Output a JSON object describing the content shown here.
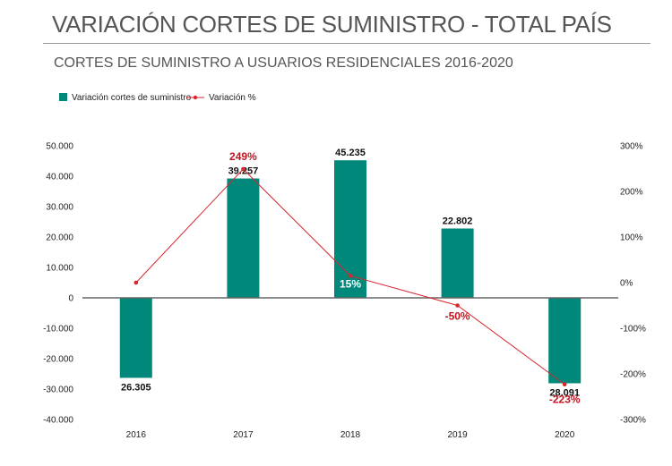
{
  "title": "VARIACIÓN CORTES DE SUMINISTRO - TOTAL PAÍS",
  "subtitle": "CORTES DE SUMINISTRO A USUARIOS RESIDENCIALES 2016-2020",
  "colors": {
    "bar": "#00887a",
    "line": "#d9252d",
    "axis": "#555555",
    "text": "#222222"
  },
  "chart_data": {
    "type": "bar",
    "categories": [
      "2016",
      "2017",
      "2018",
      "2019",
      "2020"
    ],
    "series": [
      {
        "name": "Variación cortes de suministro",
        "type": "bar",
        "axis": "left",
        "values": [
          -26305,
          39257,
          45235,
          22802,
          -28091
        ],
        "labels": [
          "26.305",
          "39.257",
          "45.235",
          "22.802",
          "28.091"
        ]
      },
      {
        "name": "Variación %",
        "type": "line",
        "axis": "right",
        "values": [
          0,
          249,
          15,
          -50,
          -223
        ],
        "labels": [
          "",
          "249%",
          "15%",
          "-50%",
          "-223%"
        ]
      }
    ],
    "ylim_left": [
      -40000,
      50000
    ],
    "yticks_left": [
      {
        "value": 50000,
        "label": "50.000"
      },
      {
        "value": 40000,
        "label": "40.000"
      },
      {
        "value": 30000,
        "label": "30.000"
      },
      {
        "value": 20000,
        "label": "20.000"
      },
      {
        "value": 10000,
        "label": "10.000"
      },
      {
        "value": 0,
        "label": "0"
      },
      {
        "value": -10000,
        "label": "-10.000"
      },
      {
        "value": -20000,
        "label": "-20.000"
      },
      {
        "value": -30000,
        "label": "-30.000"
      },
      {
        "value": -40000,
        "label": "-40.000"
      }
    ],
    "ylim_right": [
      -300,
      300
    ],
    "yticks_right": [
      {
        "value": 300,
        "label": "300%"
      },
      {
        "value": 200,
        "label": "200%"
      },
      {
        "value": 100,
        "label": "100%"
      },
      {
        "value": 0,
        "label": "0%"
      },
      {
        "value": -100,
        "label": "-100%"
      },
      {
        "value": -200,
        "label": "-200%"
      },
      {
        "value": -300,
        "label": "-300%"
      }
    ],
    "legend_position": "top-left",
    "grid": false
  }
}
